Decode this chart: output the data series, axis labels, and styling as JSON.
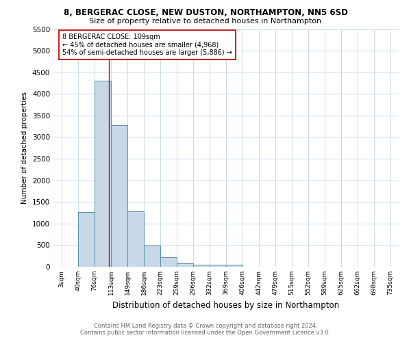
{
  "title": "8, BERGERAC CLOSE, NEW DUSTON, NORTHAMPTON, NN5 6SD",
  "subtitle": "Size of property relative to detached houses in Northampton",
  "xlabel": "Distribution of detached houses by size in Northampton",
  "ylabel": "Number of detached properties",
  "footer_line1": "Contains HM Land Registry data © Crown copyright and database right 2024.",
  "footer_line2": "Contains public sector information licensed under the Open Government Licence v3.0.",
  "bins": [
    "3sqm",
    "40sqm",
    "76sqm",
    "113sqm",
    "149sqm",
    "186sqm",
    "223sqm",
    "259sqm",
    "296sqm",
    "332sqm",
    "369sqm",
    "406sqm",
    "442sqm",
    "479sqm",
    "515sqm",
    "552sqm",
    "589sqm",
    "625sqm",
    "662sqm",
    "698sqm",
    "735sqm"
  ],
  "values": [
    0,
    1260,
    4300,
    3280,
    1280,
    490,
    215,
    85,
    55,
    55,
    55,
    0,
    0,
    0,
    0,
    0,
    0,
    0,
    0,
    0
  ],
  "bar_color": "#c8d8e8",
  "bar_edge_color": "#5b8faa",
  "grid_color": "#c8dce8",
  "property_line_color": "#aa1111",
  "annotation_text_line1": "8 BERGERAC CLOSE: 109sqm",
  "annotation_text_line2": "← 45% of detached houses are smaller (4,968)",
  "annotation_text_line3": "54% of semi-detached houses are larger (5,886) →",
  "annotation_box_color": "#ffffff",
  "annotation_edge_color": "#cc2222",
  "ylim": [
    0,
    5500
  ],
  "bin_width": 37,
  "property_sqm": 109,
  "bg_color": "#ffffff"
}
